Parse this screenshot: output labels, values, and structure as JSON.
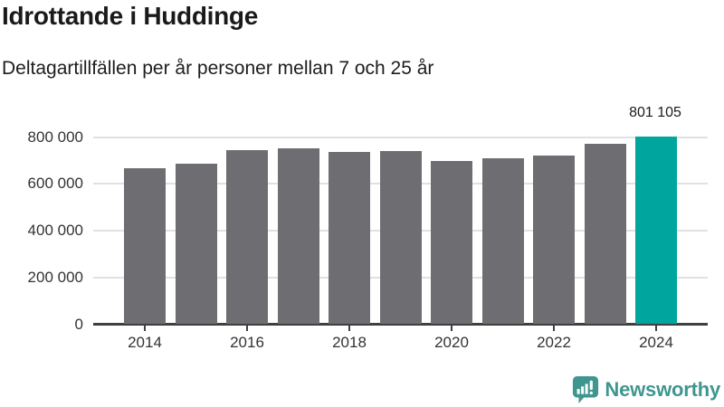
{
  "title": "Idrottande i Huddinge",
  "subtitle": "Deltagartillfällen per år personer mellan 7 och 25 år",
  "footer": {
    "brand": "Newsworthy"
  },
  "colors": {
    "bar": "#6e6e72",
    "highlight": "#00a59d",
    "grid": "#e1e1e1",
    "axis": "#3f3f3f",
    "text": "#1a1a1a",
    "tick_label": "#333333",
    "brand": "#3f968f"
  },
  "chart_data": {
    "type": "bar",
    "categories": [
      "2014",
      "2015",
      "2016",
      "2017",
      "2018",
      "2019",
      "2020",
      "2021",
      "2022",
      "2023",
      "2024"
    ],
    "values": [
      667000,
      686000,
      744000,
      752000,
      737000,
      741000,
      696000,
      708000,
      722000,
      770000,
      801105
    ],
    "highlight_index": 10,
    "annotation": {
      "text": "801 105",
      "category": "2024"
    },
    "title": "Idrottande i Huddinge",
    "subtitle": "Deltagartillfällen per år personer mellan 7 och 25 år",
    "xlabel": "",
    "ylabel": "",
    "ylim": [
      0,
      800000
    ],
    "yticks": [
      0,
      200000,
      400000,
      600000,
      800000
    ],
    "ytick_labels": [
      "0",
      "200 000",
      "400 000",
      "600 000",
      "800 000"
    ],
    "xtick_labels": [
      "2014",
      "2016",
      "2018",
      "2020",
      "2022",
      "2024"
    ],
    "grid": true,
    "legend": false
  }
}
